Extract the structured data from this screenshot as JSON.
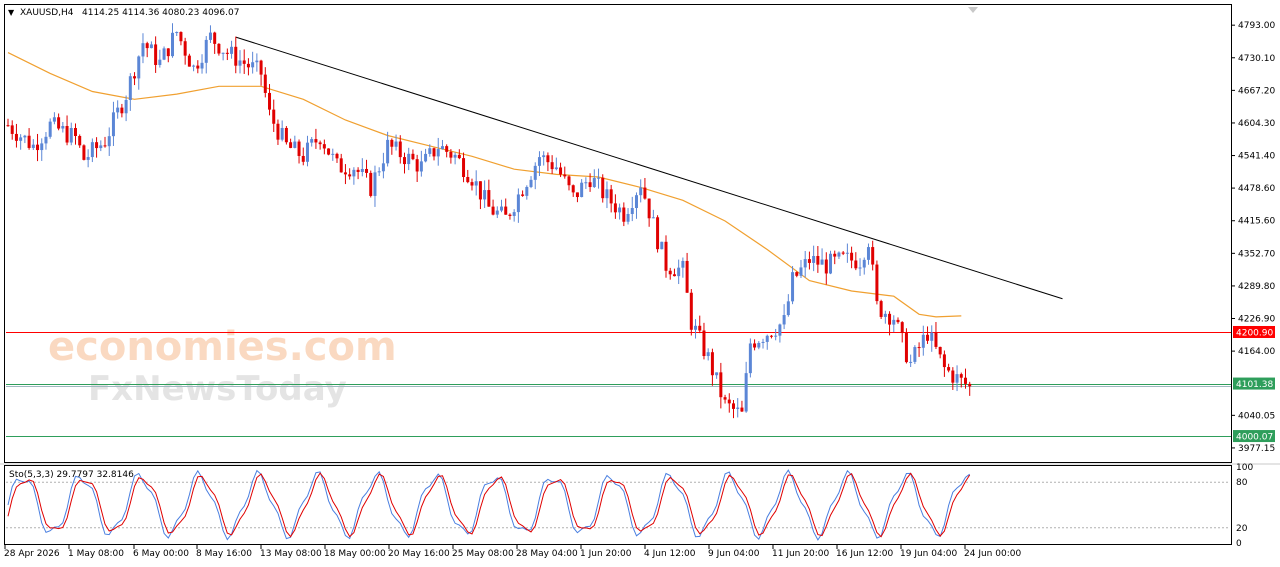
{
  "header": {
    "symbol": "XAUUSD,H4",
    "ohlc": "4114.25 4114.36 4080.23 4096.07"
  },
  "watermark": {
    "brand1": "economies.com",
    "brand2": "FxNewsToday"
  },
  "colors": {
    "bull": "#5B86D6",
    "bear": "#E00000",
    "ma": "#F0A030",
    "trendline": "#000000",
    "resistance": "#FF0000",
    "support": "#2E9E5B",
    "stoch_main": "#4A7FE0",
    "stoch_signal": "#E00000"
  },
  "chart_data": [
    {
      "type": "candlestick",
      "title": "XAUUSD,H4",
      "ylim": [
        3950,
        4830
      ],
      "y_ticks": [
        "4793.00",
        "4730.10",
        "4667.20",
        "4604.30",
        "4541.40",
        "4478.60",
        "4415.60",
        "4352.70",
        "4289.80",
        "4226.90",
        "4164.00",
        "4040.05",
        "3977.15"
      ],
      "x_ticks": [
        "28 Apr 2026",
        "1 May 08:00",
        "6 May 00:00",
        "8 May 16:00",
        "13 May 08:00",
        "18 May 00:00",
        "20 May 16:00",
        "25 May 08:00",
        "28 May 04:00",
        "1 Jun 20:00",
        "4 Jun 12:00",
        "9 Jun 04:00",
        "11 Jun 20:00",
        "16 Jun 12:00",
        "19 Jun 04:00",
        "24 Jun 00:00"
      ],
      "price_path": [
        [
          0,
          4600
        ],
        [
          6,
          4560
        ],
        [
          10,
          4600
        ],
        [
          16,
          4575
        ],
        [
          18,
          4535
        ],
        [
          23,
          4570
        ],
        [
          28,
          4660
        ],
        [
          32,
          4760
        ],
        [
          36,
          4720
        ],
        [
          40,
          4780
        ],
        [
          44,
          4710
        ],
        [
          48,
          4770
        ],
        [
          52,
          4740
        ],
        [
          56,
          4720
        ],
        [
          60,
          4700
        ],
        [
          62,
          4620
        ],
        [
          66,
          4560
        ],
        [
          70,
          4540
        ],
        [
          74,
          4580
        ],
        [
          78,
          4520
        ],
        [
          82,
          4520
        ],
        [
          86,
          4480
        ],
        [
          90,
          4560
        ],
        [
          94,
          4540
        ],
        [
          98,
          4520
        ],
        [
          102,
          4560
        ],
        [
          106,
          4540
        ],
        [
          110,
          4500
        ],
        [
          114,
          4440
        ],
        [
          118,
          4420
        ],
        [
          122,
          4480
        ],
        [
          126,
          4540
        ],
        [
          130,
          4520
        ],
        [
          134,
          4460
        ],
        [
          138,
          4500
        ],
        [
          142,
          4460
        ],
        [
          146,
          4430
        ],
        [
          150,
          4490
        ],
        [
          154,
          4380
        ],
        [
          156,
          4330
        ],
        [
          160,
          4320
        ],
        [
          162,
          4220
        ],
        [
          166,
          4150
        ],
        [
          170,
          4060
        ],
        [
          174,
          4040
        ],
        [
          176,
          4180
        ],
        [
          180,
          4200
        ],
        [
          184,
          4220
        ],
        [
          186,
          4300
        ],
        [
          190,
          4340
        ],
        [
          194,
          4330
        ],
        [
          198,
          4340
        ],
        [
          202,
          4340
        ],
        [
          204,
          4380
        ],
        [
          206,
          4250
        ],
        [
          210,
          4230
        ],
        [
          212,
          4180
        ],
        [
          214,
          4140
        ],
        [
          218,
          4200
        ],
        [
          222,
          4130
        ],
        [
          226,
          4105
        ],
        [
          228,
          4096
        ]
      ],
      "moving_average": [
        [
          0,
          4740
        ],
        [
          10,
          4700
        ],
        [
          20,
          4665
        ],
        [
          30,
          4650
        ],
        [
          40,
          4660
        ],
        [
          50,
          4675
        ],
        [
          60,
          4675
        ],
        [
          70,
          4650
        ],
        [
          80,
          4610
        ],
        [
          90,
          4580
        ],
        [
          100,
          4560
        ],
        [
          110,
          4540
        ],
        [
          120,
          4515
        ],
        [
          130,
          4505
        ],
        [
          140,
          4500
        ],
        [
          150,
          4480
        ],
        [
          160,
          4455
        ],
        [
          170,
          4415
        ],
        [
          180,
          4360
        ],
        [
          190,
          4300
        ],
        [
          200,
          4280
        ],
        [
          210,
          4270
        ],
        [
          216,
          4235
        ],
        [
          220,
          4230
        ],
        [
          226,
          4232
        ]
      ],
      "trendline": [
        [
          54,
          4770
        ],
        [
          250,
          4265
        ]
      ],
      "levels": [
        {
          "label": "4200.90",
          "value": 4200.9,
          "kind": "resistance"
        },
        {
          "label": "4101.38",
          "value": 4101.38,
          "kind": "support"
        },
        {
          "label": "4000.07",
          "value": 4000.07,
          "kind": "support"
        }
      ],
      "current_price": 4096.07
    },
    {
      "type": "line",
      "title": "Sto(5,3,3) 29.7797 32.8146",
      "ylim": [
        0,
        100
      ],
      "y_ticks": [
        "100",
        "80",
        "20",
        "0"
      ],
      "levels": [
        80,
        20
      ]
    }
  ]
}
